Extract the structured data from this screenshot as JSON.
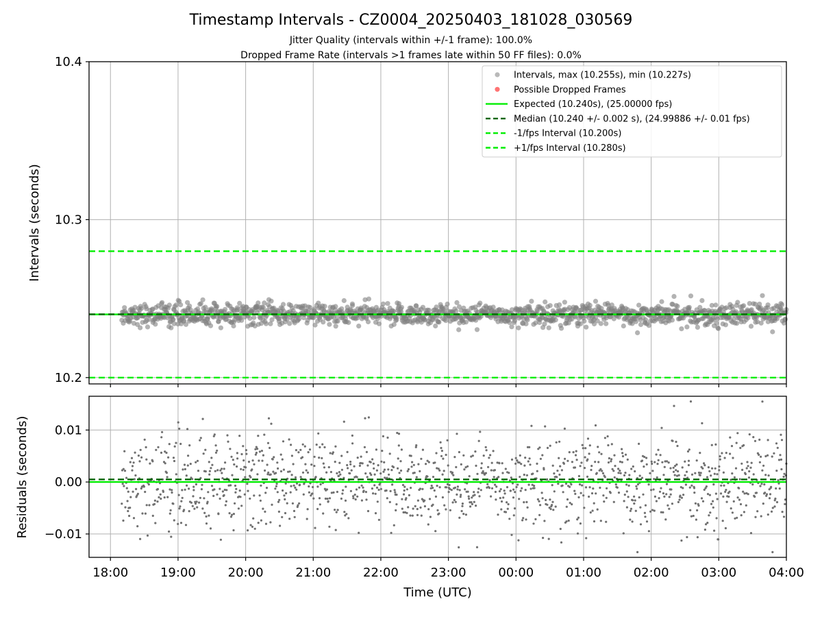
{
  "figure": {
    "title": "Timestamp Intervals - CZ0004_20250403_181028_030569",
    "subtitle_line1": "Jitter Quality (intervals within +/-1 frame): 100.0%",
    "subtitle_line2": "Dropped Frame Rate (intervals >1 frames late within 50 FF files): 0.0%"
  },
  "chart_data": [
    {
      "type": "scatter",
      "panel": "intervals",
      "title": "",
      "ylabel": "Intervals (seconds)",
      "xlabel": "",
      "x_range": [
        "17:41",
        "04:00"
      ],
      "data_x_range": [
        "18:10",
        "04:00"
      ],
      "ylim": [
        10.196,
        10.4
      ],
      "yticks": [
        10.2,
        10.3,
        10.4
      ],
      "ytick_labels": [
        "10.2",
        "10.3",
        "10.4"
      ],
      "grid": true,
      "legend_position": "top-right",
      "point_count": 1400,
      "interval_center": 10.24,
      "interval_spread": 0.0035,
      "interval_max": 10.255,
      "interval_min": 10.227,
      "series": [
        {
          "name": "Intervals, max (10.255s), min (10.227s)",
          "kind": "points",
          "color": "#808080"
        },
        {
          "name": "Possible Dropped Frames",
          "kind": "points",
          "color": "#ff0000",
          "values": []
        },
        {
          "name": "Expected (10.240s), (25.00000 fps)",
          "kind": "hline",
          "y": 10.24,
          "color": "#00ee00",
          "style": "solid"
        },
        {
          "name": "Median (10.240 +/- 0.002 s), (24.99886 +/- 0.01 fps)",
          "kind": "hline",
          "y": 10.2401,
          "color": "#006400",
          "style": "dashed"
        },
        {
          "name": "-1/fps Interval (10.200s)",
          "kind": "hline",
          "y": 10.2,
          "color": "#00ee00",
          "style": "dashed"
        },
        {
          "name": "+1/fps Interval (10.280s)",
          "kind": "hline",
          "y": 10.28,
          "color": "#00ee00",
          "style": "dashed"
        }
      ]
    },
    {
      "type": "scatter",
      "panel": "residuals",
      "title": "",
      "ylabel": "Residuals (seconds)",
      "xlabel": "Time (UTC)",
      "x_range": [
        "17:41",
        "04:00"
      ],
      "ylim": [
        -0.0145,
        0.0165
      ],
      "yticks": [
        0.01,
        0.0,
        -0.01
      ],
      "ytick_labels": [
        "0.01",
        "0.00",
        "−0.01"
      ],
      "xticks": [
        "18:00",
        "19:00",
        "20:00",
        "21:00",
        "22:00",
        "23:00",
        "00:00",
        "01:00",
        "02:00",
        "03:00",
        "04:00"
      ],
      "grid": true,
      "point_count": 1400,
      "residual_max": 0.0155,
      "residual_min": -0.0135,
      "series": [
        {
          "kind": "points",
          "color": "#707070"
        },
        {
          "kind": "hline",
          "y": 0.0,
          "color": "#00ee00",
          "style": "solid"
        },
        {
          "kind": "hline",
          "y": 0.0005,
          "color": "#006400",
          "style": "dashed"
        }
      ]
    }
  ]
}
